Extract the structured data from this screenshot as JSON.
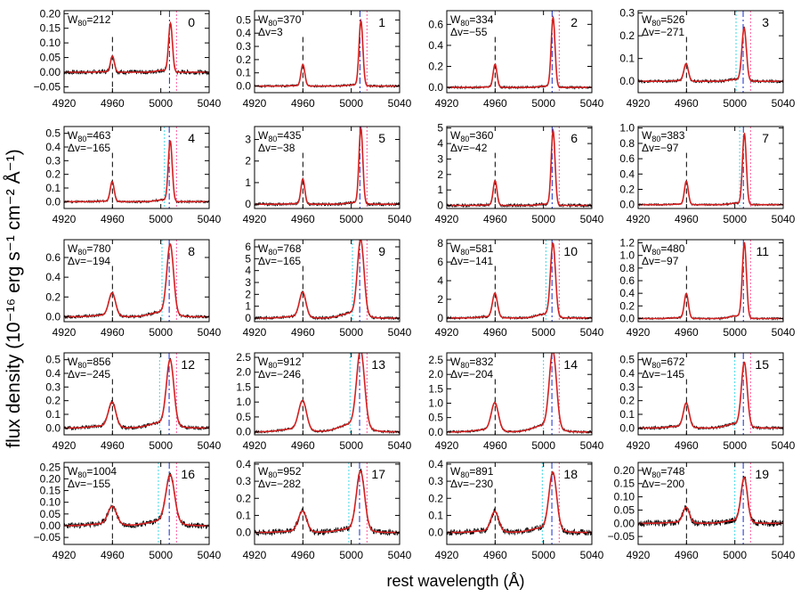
{
  "figure": {
    "ylabel": "flux density (10⁻¹⁶ erg s⁻¹ cm⁻² Å⁻¹)",
    "xlabel": "rest wavelength (Å)"
  },
  "colors": {
    "data": "#000000",
    "fit": "#d42020",
    "vline_center": "#2a3fd6",
    "vline_offset": "#ff5a9a",
    "vline_cyan": "#3fd9e8",
    "marker": "#000000"
  },
  "chart_data": [
    {
      "type": "line",
      "panel": "0",
      "w80": "212",
      "dv": "",
      "xlim": [
        4920,
        5040
      ],
      "xticks": [
        "4920",
        "4960",
        "5000",
        "5040"
      ],
      "ylim": [
        -0.07,
        0.21
      ],
      "yticks": [
        "−0.05",
        "0.00",
        "0.05",
        "0.10",
        "0.15",
        "0.20"
      ],
      "peak": 0.165,
      "amp_ratio": 0.33,
      "wing": 0.1,
      "noise": 0.03,
      "cyan": null
    },
    {
      "type": "line",
      "panel": "1",
      "w80": "370",
      "dv": "3",
      "xlim": [
        4920,
        5040
      ],
      "xticks": [
        "4920",
        "4960",
        "5000",
        "5040"
      ],
      "ylim": [
        -0.05,
        0.57
      ],
      "yticks": [
        "0.0",
        "0.1",
        "0.2",
        "0.3",
        "0.4",
        "0.5"
      ],
      "peak": 0.49,
      "amp_ratio": 0.33,
      "wing": 0.05,
      "noise": 0.015,
      "cyan": null
    },
    {
      "type": "line",
      "panel": "2",
      "w80": "334",
      "dv": "−55",
      "xlim": [
        4920,
        5040
      ],
      "xticks": [
        "4920",
        "4960",
        "5000",
        "5040"
      ],
      "ylim": [
        -0.05,
        0.73
      ],
      "yticks": [
        "0.0",
        "0.2",
        "0.4",
        "0.6"
      ],
      "peak": 0.66,
      "amp_ratio": 0.33,
      "wing": 0.05,
      "noise": 0.015,
      "cyan": null
    },
    {
      "type": "line",
      "panel": "3",
      "w80": "526",
      "dv": "−271",
      "xlim": [
        4920,
        5040
      ],
      "xticks": [
        "4920",
        "4960",
        "5000",
        "5040"
      ],
      "ylim": [
        -0.05,
        0.31
      ],
      "yticks": [
        "0.0",
        "0.1",
        "0.2",
        "0.3"
      ],
      "peak": 0.23,
      "amp_ratio": 0.33,
      "wing": 0.1,
      "noise": 0.02,
      "cyan": 5001
    },
    {
      "type": "line",
      "panel": "4",
      "w80": "463",
      "dv": "−165",
      "xlim": [
        4920,
        5040
      ],
      "xticks": [
        "4920",
        "4960",
        "5000",
        "5040"
      ],
      "ylim": [
        -0.05,
        0.55
      ],
      "yticks": [
        "0.0",
        "0.1",
        "0.2",
        "0.3",
        "0.4",
        "0.5"
      ],
      "peak": 0.44,
      "amp_ratio": 0.33,
      "wing": 0.08,
      "noise": 0.015,
      "cyan": 5003
    },
    {
      "type": "line",
      "panel": "5",
      "w80": "435",
      "dv": "−38",
      "xlim": [
        4920,
        5040
      ],
      "xticks": [
        "4920",
        "4960",
        "5000",
        "5040"
      ],
      "ylim": [
        -0.2,
        3.6
      ],
      "yticks": [
        "0",
        "1",
        "2",
        "3"
      ],
      "peak": 3.5,
      "amp_ratio": 0.33,
      "wing": 0.06,
      "noise": 0.02,
      "cyan": null
    },
    {
      "type": "line",
      "panel": "6",
      "w80": "360",
      "dv": "−42",
      "xlim": [
        4920,
        5040
      ],
      "xticks": [
        "4920",
        "4960",
        "5000",
        "5040"
      ],
      "ylim": [
        -0.2,
        5.1
      ],
      "yticks": [
        "0",
        "1",
        "2",
        "3",
        "4",
        "5"
      ],
      "peak": 4.8,
      "amp_ratio": 0.33,
      "wing": 0.05,
      "noise": 0.02,
      "cyan": null
    },
    {
      "type": "line",
      "panel": "7",
      "w80": "383",
      "dv": "−97",
      "xlim": [
        4920,
        5040
      ],
      "xticks": [
        "4920",
        "4960",
        "5000",
        "5040"
      ],
      "ylim": [
        -0.05,
        1.02
      ],
      "yticks": [
        "0.0",
        "0.2",
        "0.4",
        "0.6",
        "0.8",
        "1.0"
      ],
      "peak": 0.92,
      "amp_ratio": 0.33,
      "wing": 0.06,
      "noise": 0.012,
      "cyan": 5004
    },
    {
      "type": "line",
      "panel": "8",
      "w80": "780",
      "dv": "−194",
      "xlim": [
        4920,
        5040
      ],
      "xticks": [
        "4920",
        "4960",
        "5000",
        "5040"
      ],
      "ylim": [
        -0.05,
        0.78
      ],
      "yticks": [
        "0.0",
        "0.2",
        "0.4",
        "0.6"
      ],
      "peak": 0.7,
      "amp_ratio": 0.33,
      "wing": 0.2,
      "noise": 0.02,
      "cyan": 5001
    },
    {
      "type": "line",
      "panel": "9",
      "w80": "768",
      "dv": "−165",
      "xlim": [
        4920,
        5040
      ],
      "xticks": [
        "4920",
        "4960",
        "5000",
        "5040"
      ],
      "ylim": [
        -0.3,
        6.6
      ],
      "yticks": [
        "0",
        "1",
        "2",
        "3",
        "4",
        "5",
        "6"
      ],
      "peak": 6.3,
      "amp_ratio": 0.33,
      "wing": 0.2,
      "noise": 0.02,
      "cyan": 5001
    },
    {
      "type": "line",
      "panel": "10",
      "w80": "581",
      "dv": "−141",
      "xlim": [
        4920,
        5040
      ],
      "xticks": [
        "4920",
        "4960",
        "5000",
        "5040"
      ],
      "ylim": [
        -0.4,
        8.4
      ],
      "yticks": [
        "0",
        "2",
        "4",
        "6",
        "8"
      ],
      "peak": 7.8,
      "amp_ratio": 0.33,
      "wing": 0.15,
      "noise": 0.015,
      "cyan": 5002
    },
    {
      "type": "line",
      "panel": "11",
      "w80": "480",
      "dv": "−97",
      "xlim": [
        4920,
        5040
      ],
      "xticks": [
        "4920",
        "4960",
        "5000",
        "5040"
      ],
      "ylim": [
        -0.05,
        1.25
      ],
      "yticks": [
        "0.0",
        "0.2",
        "0.4",
        "0.6",
        "0.8",
        "1.0",
        "1.2"
      ],
      "peak": 1.18,
      "amp_ratio": 0.33,
      "wing": 0.1,
      "noise": 0.012,
      "cyan": null
    },
    {
      "type": "line",
      "panel": "12",
      "w80": "856",
      "dv": "−245",
      "xlim": [
        4920,
        5040
      ],
      "xticks": [
        "4920",
        "4960",
        "5000",
        "5040"
      ],
      "ylim": [
        -0.05,
        0.55
      ],
      "yticks": [
        "0.0",
        "0.1",
        "0.2",
        "0.3",
        "0.4",
        "0.5"
      ],
      "peak": 0.47,
      "amp_ratio": 0.38,
      "wing": 0.25,
      "noise": 0.025,
      "cyan": 4999
    },
    {
      "type": "line",
      "panel": "13",
      "w80": "912",
      "dv": "−246",
      "xlim": [
        4920,
        5040
      ],
      "xticks": [
        "4920",
        "4960",
        "5000",
        "5040"
      ],
      "ylim": [
        -0.1,
        2.65
      ],
      "yticks": [
        "0.0",
        "0.5",
        "1.0",
        "1.5",
        "2.0",
        "2.5"
      ],
      "peak": 2.55,
      "amp_ratio": 0.38,
      "wing": 0.3,
      "noise": 0.015,
      "cyan": 4999
    },
    {
      "type": "line",
      "panel": "14",
      "w80": "832",
      "dv": "−204",
      "xlim": [
        4920,
        5040
      ],
      "xticks": [
        "4920",
        "4960",
        "5000",
        "5040"
      ],
      "ylim": [
        -0.1,
        2.75
      ],
      "yticks": [
        "0.0",
        "0.5",
        "1.0",
        "1.5",
        "2.0",
        "2.5"
      ],
      "peak": 2.65,
      "amp_ratio": 0.36,
      "wing": 0.25,
      "noise": 0.015,
      "cyan": 5000
    },
    {
      "type": "line",
      "panel": "15",
      "w80": "672",
      "dv": "−145",
      "xlim": [
        4920,
        5040
      ],
      "xticks": [
        "4920",
        "4960",
        "5000",
        "5040"
      ],
      "ylim": [
        -0.05,
        0.55
      ],
      "yticks": [
        "0.0",
        "0.1",
        "0.2",
        "0.3",
        "0.4",
        "0.5"
      ],
      "peak": 0.46,
      "amp_ratio": 0.38,
      "wing": 0.2,
      "noise": 0.02,
      "cyan": 5000
    },
    {
      "type": "line",
      "panel": "16",
      "w80": "1004",
      "dv": "−155",
      "xlim": [
        4920,
        5040
      ],
      "xticks": [
        "4920",
        "4960",
        "5000",
        "5040"
      ],
      "ylim": [
        -0.08,
        0.27
      ],
      "yticks": [
        "−0.05",
        "0.00",
        "0.05",
        "0.10",
        "0.15",
        "0.20",
        "0.25"
      ],
      "peak": 0.2,
      "amp_ratio": 0.38,
      "wing": 0.3,
      "noise": 0.04,
      "cyan": 4998
    },
    {
      "type": "line",
      "panel": "17",
      "w80": "952",
      "dv": "−282",
      "xlim": [
        4920,
        5040
      ],
      "xticks": [
        "4920",
        "4960",
        "5000",
        "5040"
      ],
      "ylim": [
        -0.07,
        0.41
      ],
      "yticks": [
        "0.0",
        "0.1",
        "0.2",
        "0.3",
        "0.4"
      ],
      "peak": 0.34,
      "amp_ratio": 0.35,
      "wing": 0.2,
      "noise": 0.04,
      "cyan": 4998
    },
    {
      "type": "line",
      "panel": "18",
      "w80": "891",
      "dv": "−230",
      "xlim": [
        4920,
        5040
      ],
      "xticks": [
        "4920",
        "4960",
        "5000",
        "5040"
      ],
      "ylim": [
        -0.07,
        0.41
      ],
      "yticks": [
        "0.0",
        "0.1",
        "0.2",
        "0.3",
        "0.4"
      ],
      "peak": 0.33,
      "amp_ratio": 0.35,
      "wing": 0.25,
      "noise": 0.04,
      "cyan": 4999
    },
    {
      "type": "line",
      "panel": "19",
      "w80": "748",
      "dv": "−200",
      "xlim": [
        4920,
        5040
      ],
      "xticks": [
        "4920",
        "4960",
        "5000",
        "5040"
      ],
      "ylim": [
        -0.08,
        0.23
      ],
      "yticks": [
        "−0.05",
        "0.00",
        "0.05",
        "0.10",
        "0.15",
        "0.20"
      ],
      "peak": 0.165,
      "amp_ratio": 0.35,
      "wing": 0.2,
      "noise": 0.045,
      "cyan": 5000
    }
  ]
}
